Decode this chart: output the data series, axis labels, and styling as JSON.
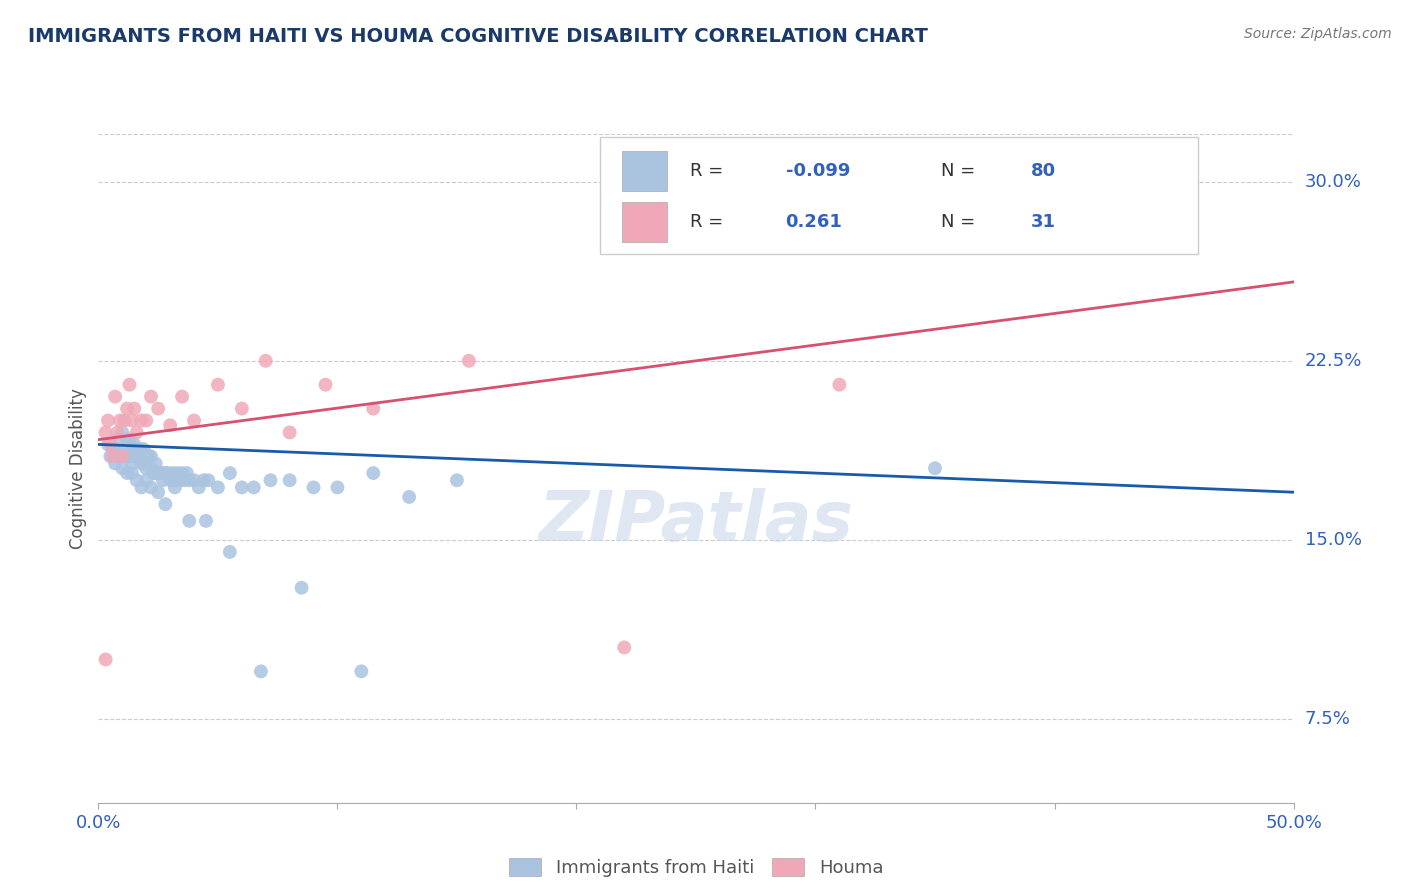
{
  "title": "IMMIGRANTS FROM HAITI VS HOUMA COGNITIVE DISABILITY CORRELATION CHART",
  "source": "Source: ZipAtlas.com",
  "ylabel": "Cognitive Disability",
  "xlim": [
    0.0,
    0.5
  ],
  "ylim": [
    0.04,
    0.32
  ],
  "yticks": [
    0.075,
    0.15,
    0.225,
    0.3
  ],
  "ytick_labels": [
    "7.5%",
    "15.0%",
    "22.5%",
    "30.0%"
  ],
  "xticks": [
    0.0,
    0.1,
    0.2,
    0.3,
    0.4,
    0.5
  ],
  "xtick_labels": [
    "0.0%",
    "",
    "",
    "",
    "",
    "50.0%"
  ],
  "blue_color": "#aac4e0",
  "pink_color": "#f0a8b8",
  "blue_line_color": "#1a5aab",
  "pink_line_color": "#d85070",
  "title_color": "#1a3a6b",
  "grid_color": "#cccccc",
  "watermark": "ZIPatlas",
  "blue_x": [
    0.004,
    0.006,
    0.007,
    0.008,
    0.009,
    0.01,
    0.011,
    0.012,
    0.012,
    0.013,
    0.013,
    0.014,
    0.014,
    0.015,
    0.015,
    0.016,
    0.016,
    0.017,
    0.018,
    0.018,
    0.019,
    0.019,
    0.02,
    0.02,
    0.021,
    0.022,
    0.022,
    0.023,
    0.024,
    0.024,
    0.025,
    0.026,
    0.027,
    0.027,
    0.028,
    0.029,
    0.03,
    0.031,
    0.032,
    0.033,
    0.034,
    0.035,
    0.036,
    0.037,
    0.038,
    0.04,
    0.042,
    0.044,
    0.046,
    0.05,
    0.055,
    0.06,
    0.065,
    0.072,
    0.08,
    0.09,
    0.1,
    0.115,
    0.13,
    0.15,
    0.005,
    0.007,
    0.008,
    0.01,
    0.012,
    0.014,
    0.016,
    0.018,
    0.02,
    0.022,
    0.025,
    0.028,
    0.032,
    0.038,
    0.045,
    0.055,
    0.068,
    0.085,
    0.11,
    0.35
  ],
  "blue_y": [
    0.19,
    0.188,
    0.185,
    0.192,
    0.186,
    0.195,
    0.188,
    0.185,
    0.192,
    0.185,
    0.192,
    0.188,
    0.182,
    0.19,
    0.185,
    0.185,
    0.188,
    0.185,
    0.188,
    0.182,
    0.188,
    0.182,
    0.185,
    0.18,
    0.185,
    0.18,
    0.185,
    0.178,
    0.182,
    0.178,
    0.178,
    0.178,
    0.178,
    0.175,
    0.178,
    0.178,
    0.175,
    0.178,
    0.175,
    0.178,
    0.175,
    0.178,
    0.175,
    0.178,
    0.175,
    0.175,
    0.172,
    0.175,
    0.175,
    0.172,
    0.178,
    0.172,
    0.172,
    0.175,
    0.175,
    0.172,
    0.172,
    0.178,
    0.168,
    0.175,
    0.185,
    0.182,
    0.185,
    0.18,
    0.178,
    0.178,
    0.175,
    0.172,
    0.175,
    0.172,
    0.17,
    0.165,
    0.172,
    0.158,
    0.158,
    0.145,
    0.095,
    0.13,
    0.095,
    0.18
  ],
  "pink_x": [
    0.003,
    0.004,
    0.005,
    0.006,
    0.007,
    0.008,
    0.009,
    0.01,
    0.011,
    0.012,
    0.013,
    0.014,
    0.015,
    0.016,
    0.018,
    0.02,
    0.022,
    0.025,
    0.03,
    0.035,
    0.04,
    0.05,
    0.06,
    0.07,
    0.08,
    0.095,
    0.115,
    0.155,
    0.22,
    0.31,
    0.003
  ],
  "pink_y": [
    0.195,
    0.2,
    0.19,
    0.185,
    0.21,
    0.195,
    0.2,
    0.185,
    0.2,
    0.205,
    0.215,
    0.2,
    0.205,
    0.195,
    0.2,
    0.2,
    0.21,
    0.205,
    0.198,
    0.21,
    0.2,
    0.215,
    0.205,
    0.225,
    0.195,
    0.215,
    0.205,
    0.225,
    0.105,
    0.215,
    0.1
  ],
  "blue_trend_x": [
    0.0,
    0.5
  ],
  "blue_trend_y": [
    0.19,
    0.17
  ],
  "pink_trend_x": [
    0.0,
    0.5
  ],
  "pink_trend_y": [
    0.192,
    0.258
  ]
}
